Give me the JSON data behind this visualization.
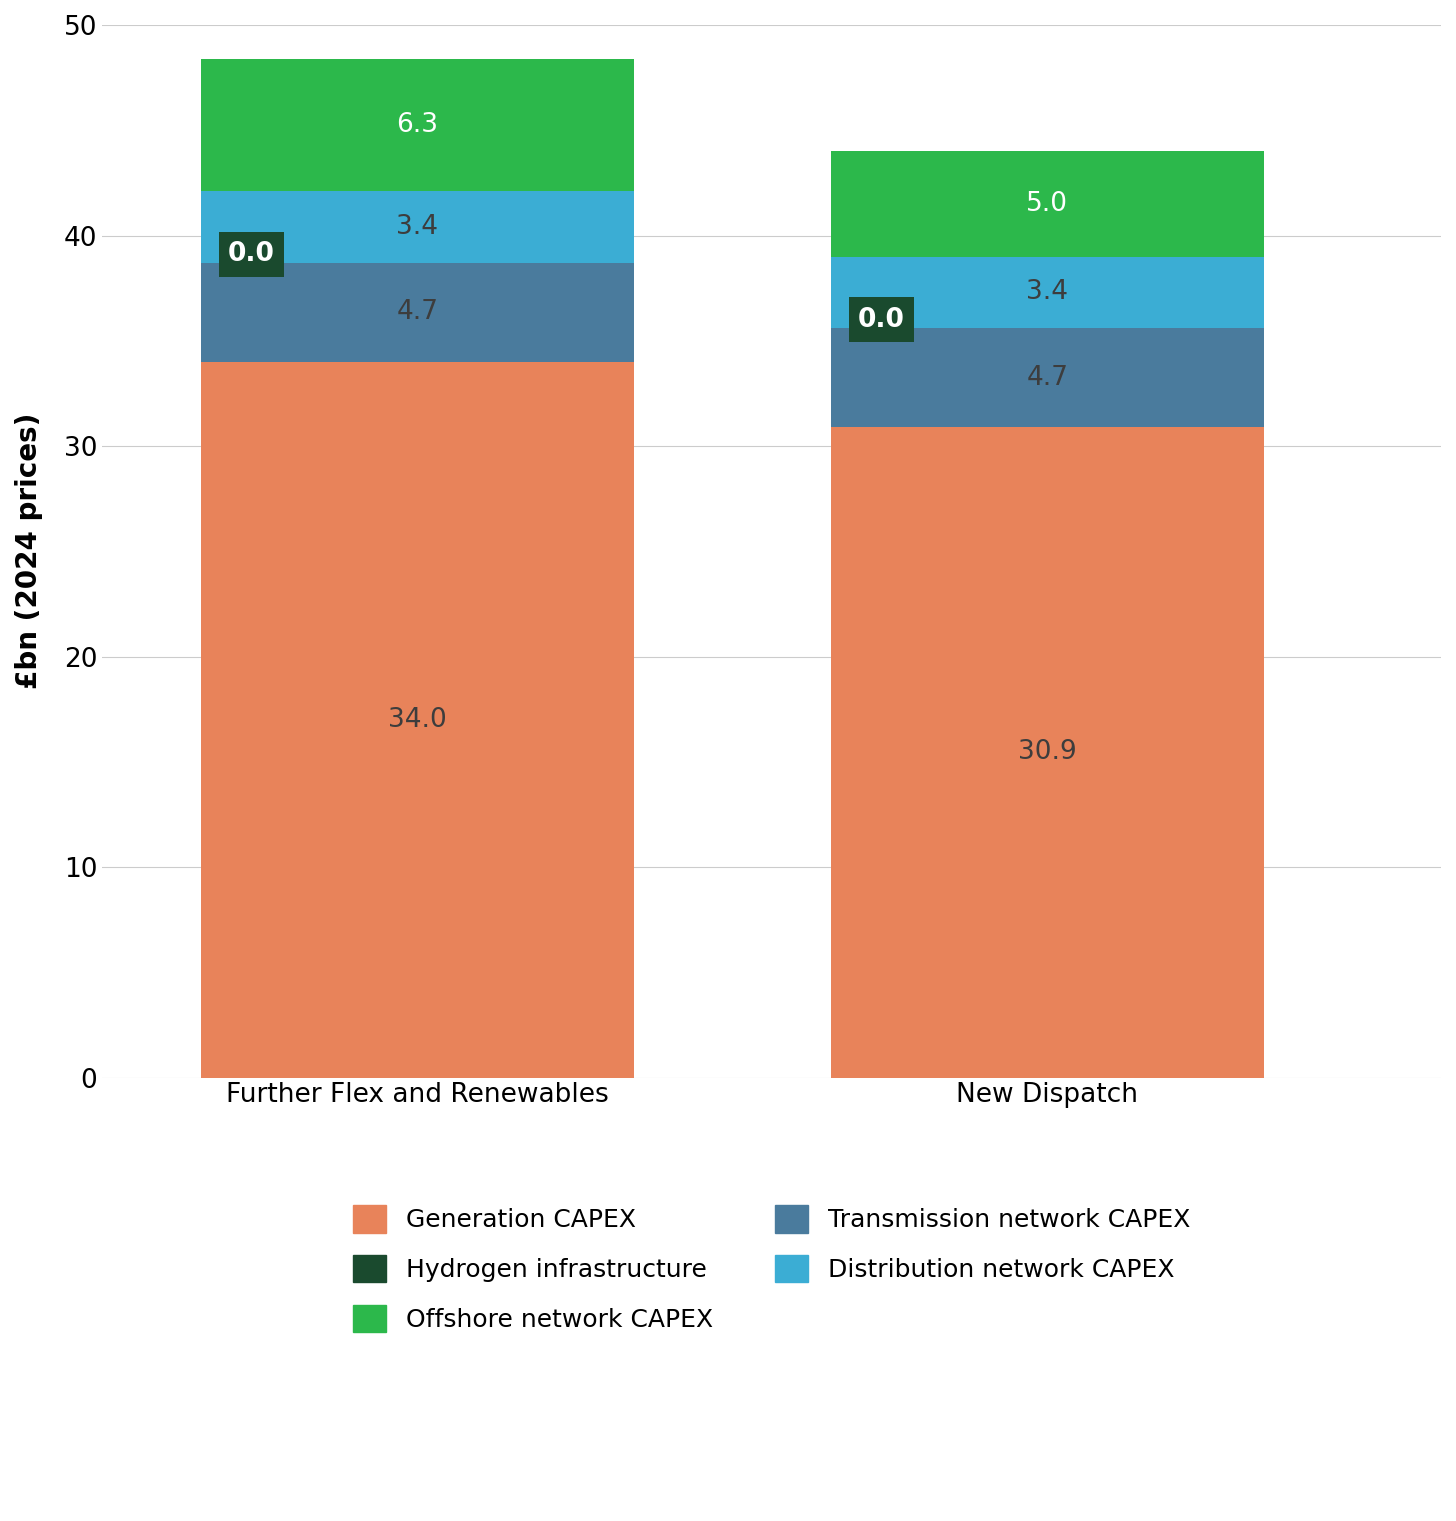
{
  "categories": [
    "Further Flex and Renewables",
    "New Dispatch"
  ],
  "segments": [
    {
      "label": "Generation CAPEX",
      "values": [
        34.0,
        30.9
      ],
      "color": "#E8835A",
      "text_color": "#3d3d3d"
    },
    {
      "label": "Transmission network CAPEX",
      "values": [
        4.7,
        4.7
      ],
      "color": "#4A7B9D",
      "text_color": "#3d3d3d"
    },
    {
      "label": "Hydrogen infrastructure",
      "values": [
        0.0,
        0.0
      ],
      "color": "#1A4A2E",
      "text_color": "white"
    },
    {
      "label": "Distribution network CAPEX",
      "values": [
        3.4,
        3.4
      ],
      "color": "#3BADD4",
      "text_color": "#3d3d3d"
    },
    {
      "label": "Offshore network CAPEX",
      "values": [
        6.3,
        5.0
      ],
      "color": "#2CB84B",
      "text_color": "white"
    }
  ],
  "legend_order": [
    0,
    2,
    4,
    1,
    3
  ],
  "ylabel": "£bn (2024 prices)",
  "ylim": [
    0,
    50
  ],
  "yticks": [
    0,
    10,
    20,
    30,
    40,
    50
  ],
  "background_color": "#ffffff",
  "bar_width": 0.55,
  "bar_positions": [
    0.3,
    1.1
  ],
  "xlim": [
    -0.1,
    1.6
  ],
  "label_fontsize": 19,
  "value_label_fontsize": 19,
  "tick_fontsize": 19,
  "legend_fontsize": 18,
  "ylabel_fontsize": 20
}
